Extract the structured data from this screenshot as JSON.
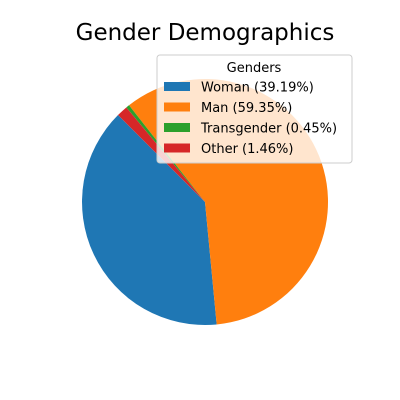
{
  "chart_data": {
    "type": "pie",
    "title": "Gender Demographics",
    "legend": {
      "title": "Genders",
      "placement": "top-right"
    },
    "slices": [
      {
        "label": "Woman (39.19%)",
        "value": 39.19,
        "color": "#1f77b4"
      },
      {
        "label": "Man (59.35%)",
        "value": 59.35,
        "color": "#ff7f0e"
      },
      {
        "label": "Transgender (0.45%)",
        "value": 0.45,
        "color": "#2ca02c"
      },
      {
        "label": "Other (1.46%)",
        "value": 1.46,
        "color": "#d62728"
      }
    ],
    "start_angle_deg": 135,
    "direction": "counterclockwise"
  }
}
